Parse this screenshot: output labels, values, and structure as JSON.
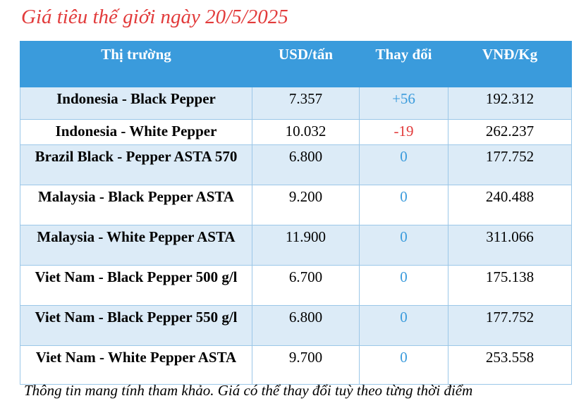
{
  "title": "Giá tiêu thế giới ngày 20/5/2025",
  "colors": {
    "title": "#e23b3b",
    "header_bg": "#3a9bdc",
    "row_alt_bg": "#dcebf7",
    "increase": "#3a9bdc",
    "decrease": "#e23b3b",
    "unchanged": "#3a9bdc"
  },
  "table": {
    "headers": [
      "Thị trường",
      "USD/tấn",
      "Thay đổi",
      "VNĐ/Kg"
    ],
    "rows": [
      {
        "market": "Indonesia - Black Pepper",
        "usd": "7.357",
        "change": "+56",
        "vnd": "192.312"
      },
      {
        "market": "Indonesia - White Pepper",
        "usd": "10.032",
        "change": "-19",
        "vnd": "262.237"
      },
      {
        "market": "Brazil Black - Pepper ASTA 570",
        "usd": "6.800",
        "change": "0",
        "vnd": "177.752"
      },
      {
        "market": "Malaysia - Black Pepper ASTA",
        "usd": "9.200",
        "change": "0",
        "vnd": "240.488"
      },
      {
        "market": "Malaysia - White Pepper ASTA",
        "usd": "11.900",
        "change": "0",
        "vnd": "311.066"
      },
      {
        "market": "Viet Nam - Black Pepper 500 g/l",
        "usd": "6.700",
        "change": "0",
        "vnd": "175.138"
      },
      {
        "market": "Viet Nam - Black Pepper 550 g/l",
        "usd": "6.800",
        "change": "0",
        "vnd": "177.752"
      },
      {
        "market": "Viet Nam - White Pepper ASTA",
        "usd": "9.700",
        "change": "0",
        "vnd": "253.558"
      }
    ]
  },
  "footer": "Thông tin mang tính tham khảo. Giá có thể thay đổi tuỳ theo từng thời điểm"
}
